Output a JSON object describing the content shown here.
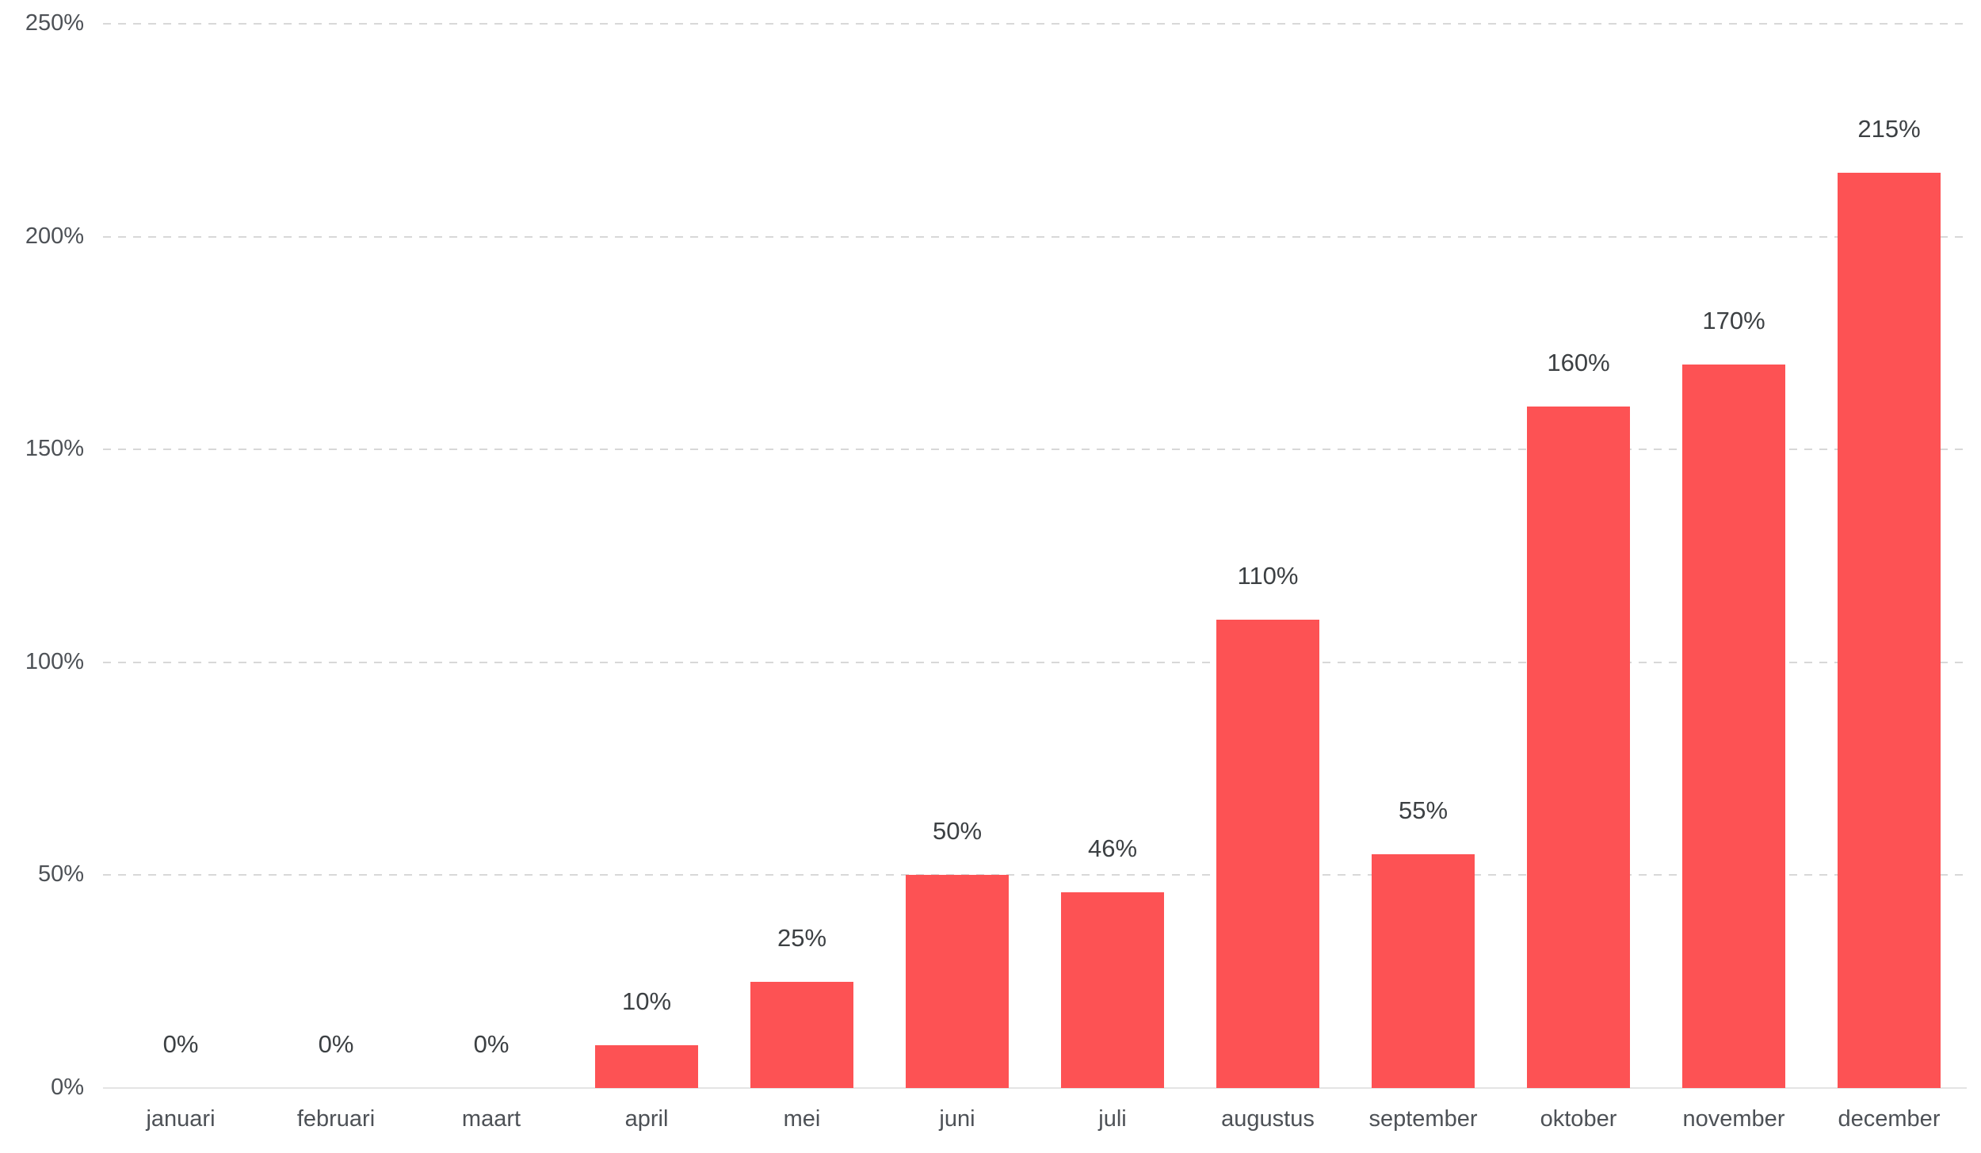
{
  "chart_data": {
    "type": "bar",
    "title": "",
    "xlabel": "",
    "ylabel": "",
    "categories": [
      "januari",
      "februari",
      "maart",
      "april",
      "mei",
      "juni",
      "juli",
      "augustus",
      "september",
      "oktober",
      "november",
      "december"
    ],
    "values": [
      0,
      0,
      0,
      10,
      25,
      50,
      46,
      110,
      55,
      160,
      170,
      215
    ],
    "value_labels": [
      "0%",
      "0%",
      "0%",
      "10%",
      "25%",
      "50%",
      "46%",
      "110%",
      "55%",
      "160%",
      "170%",
      "215%"
    ],
    "ylim": [
      0,
      250
    ],
    "y_ticks": [
      {
        "value": 0,
        "label": "0%"
      },
      {
        "value": 50,
        "label": "50%"
      },
      {
        "value": 100,
        "label": "100%"
      },
      {
        "value": 150,
        "label": "150%"
      },
      {
        "value": 200,
        "label": "200%"
      },
      {
        "value": 250,
        "label": "250%"
      }
    ],
    "grid": "horizontal-dashed, zero-line solid, no vertical axis line",
    "legend": "none",
    "bar_color": "#fd5254",
    "gridline_color": "#d8d8d8",
    "baseline_color": "#e4e4e4",
    "value_label_color": "#3c4043",
    "axis_label_color": "#4d5156",
    "background_color": "#ffffff"
  }
}
